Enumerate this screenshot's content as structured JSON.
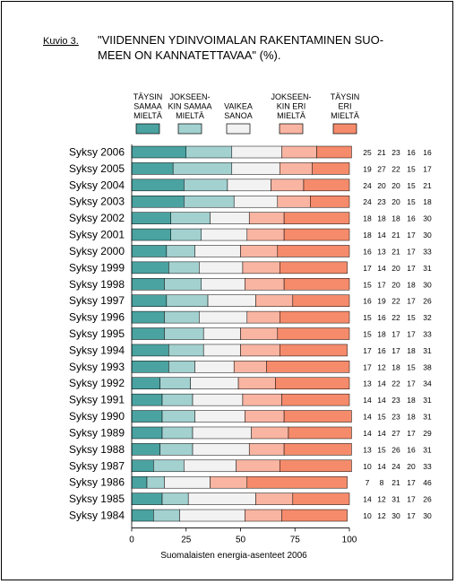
{
  "figure": {
    "label": "Kuvio 3.",
    "title_line1": "\"VIIDENNEN YDINVOIMALAN RAKENTAMINEN SUO-",
    "title_line2": "MEEN ON KANNATETTAVAA\" (%).",
    "source": "Suomalaisten energia-asenteet 2006"
  },
  "chart_data": {
    "type": "bar",
    "orientation": "horizontal",
    "stacked": true,
    "xlim": [
      0,
      100
    ],
    "xticks": [
      0,
      25,
      50,
      75,
      100
    ],
    "grid": false,
    "legend_position": "top",
    "categories": [
      "Syksy 2006",
      "Syksy 2005",
      "Syksy 2004",
      "Syksy 2003",
      "Syksy 2002",
      "Syksy 2001",
      "Syksy 2000",
      "Syksy 1999",
      "Syksy 1998",
      "Syksy 1997",
      "Syksy 1996",
      "Syksy 1995",
      "Syksy 1994",
      "Syksy 1993",
      "Syksy 1992",
      "Syksy 1991",
      "Syksy 1990",
      "Syksy 1989",
      "Syksy 1988",
      "Syksy 1987",
      "Syksy 1986",
      "Syksy 1985",
      "Syksy 1984"
    ],
    "series": [
      {
        "name": "TÄYSIN SAMAA MIELTÄ",
        "legend_lines": [
          "TÄYSIN",
          "SAMAA",
          "MIELTÄ"
        ],
        "color": "#4aa3a1",
        "values": [
          25,
          19,
          24,
          24,
          18,
          18,
          16,
          17,
          15,
          16,
          15,
          15,
          17,
          17,
          13,
          14,
          14,
          14,
          13,
          10,
          7,
          14,
          10
        ]
      },
      {
        "name": "JOKSEENKIN SAMAA MIELTÄ",
        "legend_lines": [
          "JOKSEEN-",
          "KIN SAMAA",
          "MIELTÄ"
        ],
        "color": "#a2d1d0",
        "values": [
          21,
          27,
          20,
          23,
          18,
          14,
          13,
          14,
          17,
          19,
          16,
          18,
          16,
          12,
          14,
          14,
          15,
          14,
          15,
          14,
          8,
          12,
          12
        ]
      },
      {
        "name": "VAIKEA SANOA",
        "legend_lines": [
          "VAIKEA",
          "SANOA"
        ],
        "color": "#f2f2f2",
        "values": [
          23,
          22,
          20,
          20,
          18,
          21,
          21,
          20,
          20,
          22,
          22,
          17,
          17,
          18,
          22,
          23,
          23,
          27,
          26,
          24,
          21,
          31,
          30
        ]
      },
      {
        "name": "JOKSEENKIN ERI MIELTÄ",
        "legend_lines": [
          "JOKSEEN-",
          "KIN ERI",
          "MIELTÄ"
        ],
        "color": "#f9b5a2",
        "values": [
          16,
          15,
          15,
          15,
          16,
          17,
          17,
          17,
          18,
          17,
          15,
          17,
          18,
          15,
          17,
          18,
          18,
          17,
          16,
          20,
          17,
          17,
          17
        ]
      },
      {
        "name": "TÄYSIN ERI MIELTÄ",
        "legend_lines": [
          "TÄYSIN",
          "ERI",
          "MIELTÄ"
        ],
        "color": "#f58b6b",
        "values": [
          16,
          17,
          21,
          18,
          30,
          30,
          33,
          31,
          30,
          26,
          32,
          33,
          31,
          38,
          34,
          31,
          31,
          29,
          31,
          33,
          46,
          26,
          30
        ]
      }
    ]
  }
}
